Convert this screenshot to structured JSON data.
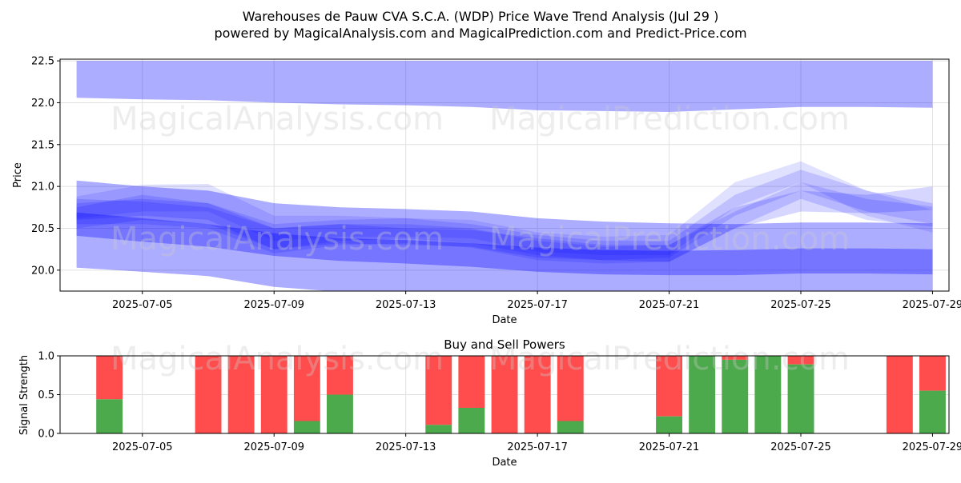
{
  "title_line1": "Warehouses de Pauw CVA S.C.A. (WDP) Price Wave Trend Analysis (Jul 29 )",
  "title_line2": "powered by MagicalAnalysis.com and MagicalPrediction.com and Predict-Price.com",
  "watermarks": [
    "MagicalAnalysis.com",
    "MagicalPrediction.com"
  ],
  "colors": {
    "band": "#0000ff",
    "buy": "#4caa4c",
    "sell": "#ff4c4c",
    "grid": "#e0e0e0"
  },
  "chart_data": [
    {
      "type": "area",
      "xlabel": "Date",
      "ylabel": "Price",
      "ylim": [
        19.75,
        22.52
      ],
      "xlim": [
        "2025-07-02T12:00",
        "2025-07-29T12:00"
      ],
      "x_ticks": [
        "2025-07-05",
        "2025-07-09",
        "2025-07-13",
        "2025-07-17",
        "2025-07-21",
        "2025-07-25",
        "2025-07-29"
      ],
      "y_ticks": [
        "20.0",
        "20.5",
        "21.0",
        "21.5",
        "22.0",
        "22.5"
      ],
      "grid": true,
      "dates": [
        "2025-07-03",
        "2025-07-05",
        "2025-07-07",
        "2025-07-09",
        "2025-07-11",
        "2025-07-13",
        "2025-07-15",
        "2025-07-17",
        "2025-07-19",
        "2025-07-21",
        "2025-07-23",
        "2025-07-25",
        "2025-07-27",
        "2025-07-29"
      ],
      "bands": [
        {
          "upper": [
            22.5,
            22.5,
            22.5,
            22.5,
            22.5,
            22.5,
            22.5,
            22.5,
            22.5,
            22.5,
            22.5,
            22.5,
            22.5,
            22.5
          ],
          "lower": [
            22.06,
            22.04,
            22.03,
            22.0,
            21.98,
            21.97,
            21.95,
            21.91,
            21.9,
            21.89,
            21.92,
            21.95,
            21.95,
            21.94
          ]
        },
        {
          "upper": [
            21.07,
            21.0,
            20.95,
            20.8,
            20.75,
            20.73,
            20.7,
            20.62,
            20.58,
            20.56,
            20.55,
            20.57,
            20.57,
            20.56
          ],
          "lower": [
            20.03,
            19.98,
            19.93,
            19.8,
            19.74,
            19.72,
            19.7,
            19.65,
            19.65,
            19.65,
            19.65,
            19.65,
            19.65,
            19.65
          ]
        },
        {
          "upper": [
            20.69,
            20.62,
            20.55,
            20.44,
            20.38,
            20.36,
            20.32,
            20.27,
            20.24,
            20.23,
            20.24,
            20.26,
            20.26,
            20.25
          ],
          "lower": [
            20.41,
            20.34,
            20.28,
            20.17,
            20.11,
            20.08,
            20.04,
            19.98,
            19.95,
            19.94,
            19.94,
            19.96,
            19.96,
            19.95
          ]
        },
        {
          "upper": [
            20.85,
            20.82,
            20.75,
            20.5,
            20.55,
            20.55,
            20.5,
            20.35,
            20.28,
            20.3,
            20.7,
            21.05,
            20.85,
            20.76
          ],
          "lower": [
            20.55,
            20.55,
            20.5,
            20.2,
            20.3,
            20.32,
            20.27,
            20.12,
            20.08,
            20.1,
            20.5,
            20.85,
            20.6,
            20.52
          ]
        },
        {
          "upper": [
            20.75,
            20.9,
            20.8,
            20.55,
            20.6,
            20.62,
            20.55,
            20.42,
            20.35,
            20.35,
            20.9,
            21.2,
            20.95,
            20.8
          ],
          "lower": [
            20.5,
            20.6,
            20.55,
            20.25,
            20.35,
            20.38,
            20.32,
            20.18,
            20.12,
            20.15,
            20.65,
            20.95,
            20.7,
            20.55
          ]
        },
        {
          "upper": [
            20.88,
            21.02,
            21.03,
            20.65,
            20.65,
            20.62,
            20.6,
            20.45,
            20.4,
            20.42,
            21.05,
            21.3,
            20.95,
            20.72
          ],
          "lower": [
            20.62,
            20.7,
            20.7,
            20.35,
            20.4,
            20.4,
            20.38,
            20.22,
            20.18,
            20.18,
            20.75,
            21.05,
            20.65,
            20.45
          ]
        },
        {
          "upper": [
            20.8,
            20.85,
            20.8,
            20.5,
            20.55,
            20.5,
            20.48,
            20.38,
            20.3,
            20.3,
            20.75,
            20.95,
            20.9,
            21.0
          ],
          "lower": [
            20.6,
            20.65,
            20.6,
            20.25,
            20.32,
            20.3,
            20.28,
            20.15,
            20.12,
            20.1,
            20.5,
            20.7,
            20.68,
            20.72
          ]
        }
      ]
    },
    {
      "type": "bar",
      "title": "Buy and Sell Powers",
      "xlabel": "Date",
      "ylabel": "Signal Strength",
      "ylim": [
        0,
        1.0
      ],
      "y_ticks": [
        "0.0",
        "0.5",
        "1.0"
      ],
      "x_ticks": [
        "2025-07-05",
        "2025-07-09",
        "2025-07-13",
        "2025-07-17",
        "2025-07-21",
        "2025-07-25",
        "2025-07-29"
      ],
      "xlim": [
        "2025-07-02T12:00",
        "2025-07-29T12:00"
      ],
      "grid": true,
      "bars": [
        {
          "date": "2025-07-04",
          "buy": 0.44
        },
        {
          "date": "2025-07-07",
          "buy": 0.0
        },
        {
          "date": "2025-07-08",
          "buy": 0.0
        },
        {
          "date": "2025-07-09",
          "buy": 0.0
        },
        {
          "date": "2025-07-10",
          "buy": 0.16
        },
        {
          "date": "2025-07-11",
          "buy": 0.5
        },
        {
          "date": "2025-07-14",
          "buy": 0.11
        },
        {
          "date": "2025-07-15",
          "buy": 0.33
        },
        {
          "date": "2025-07-16",
          "buy": 0.0
        },
        {
          "date": "2025-07-17",
          "buy": 0.0
        },
        {
          "date": "2025-07-18",
          "buy": 0.16
        },
        {
          "date": "2025-07-21",
          "buy": 0.22
        },
        {
          "date": "2025-07-22",
          "buy": 1.0
        },
        {
          "date": "2025-07-23",
          "buy": 0.95
        },
        {
          "date": "2025-07-24",
          "buy": 1.0
        },
        {
          "date": "2025-07-25",
          "buy": 0.89
        },
        {
          "date": "2025-07-28",
          "buy": 0.0
        },
        {
          "date": "2025-07-29",
          "buy": 0.55
        }
      ]
    }
  ]
}
